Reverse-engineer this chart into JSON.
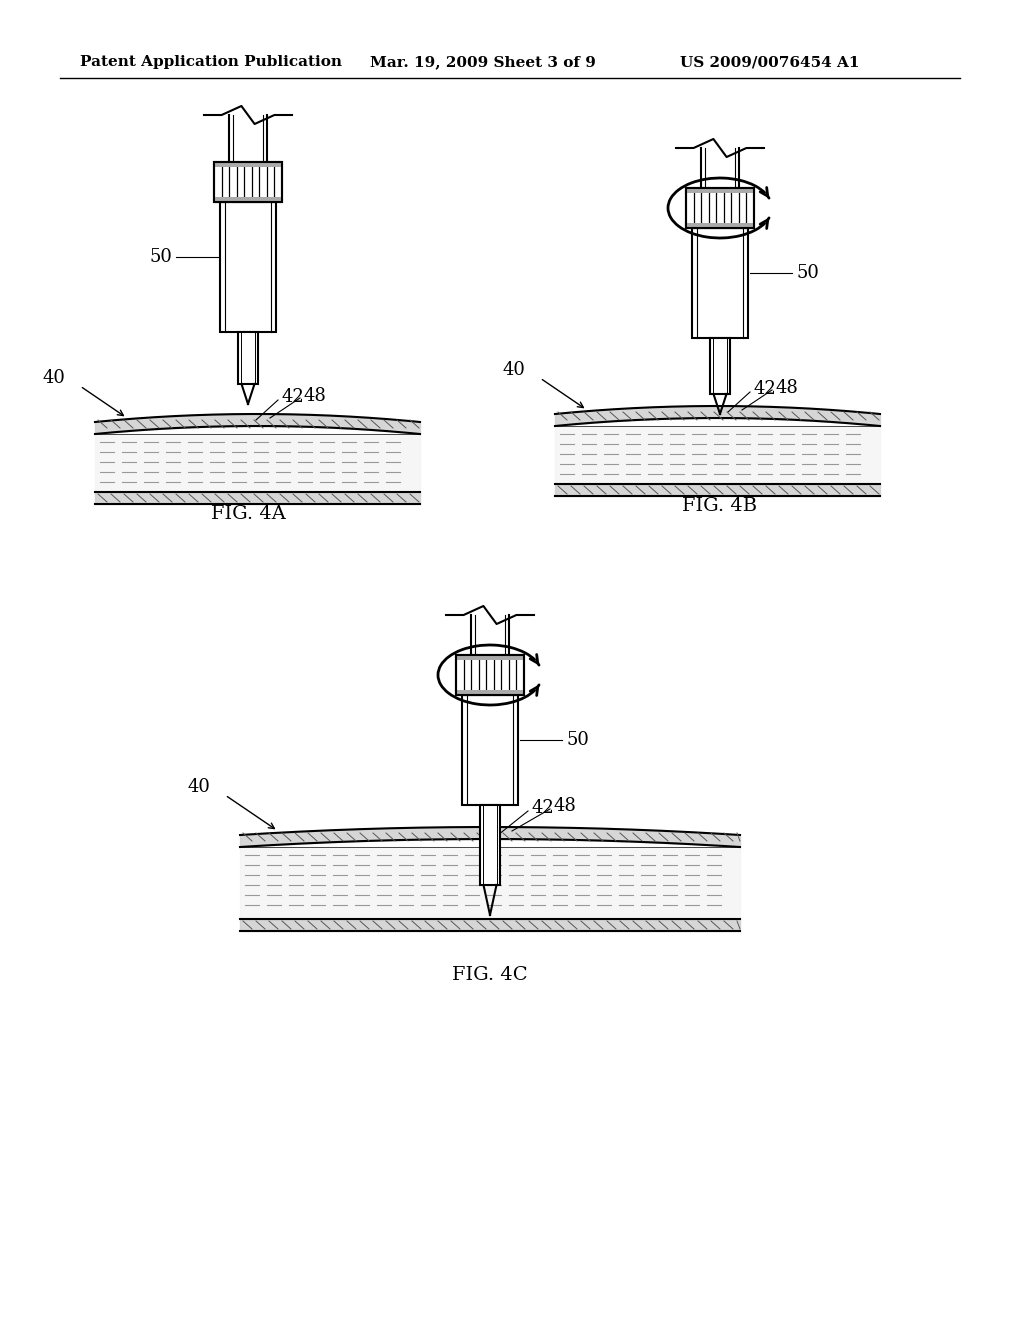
{
  "title_left": "Patent Application Publication",
  "title_mid": "Mar. 19, 2009 Sheet 3 of 9",
  "title_right": "US 2009/0076454 A1",
  "bg_color": "#ffffff",
  "line_color": "#000000",
  "lw": 1.5,
  "lw_thick": 2.0
}
